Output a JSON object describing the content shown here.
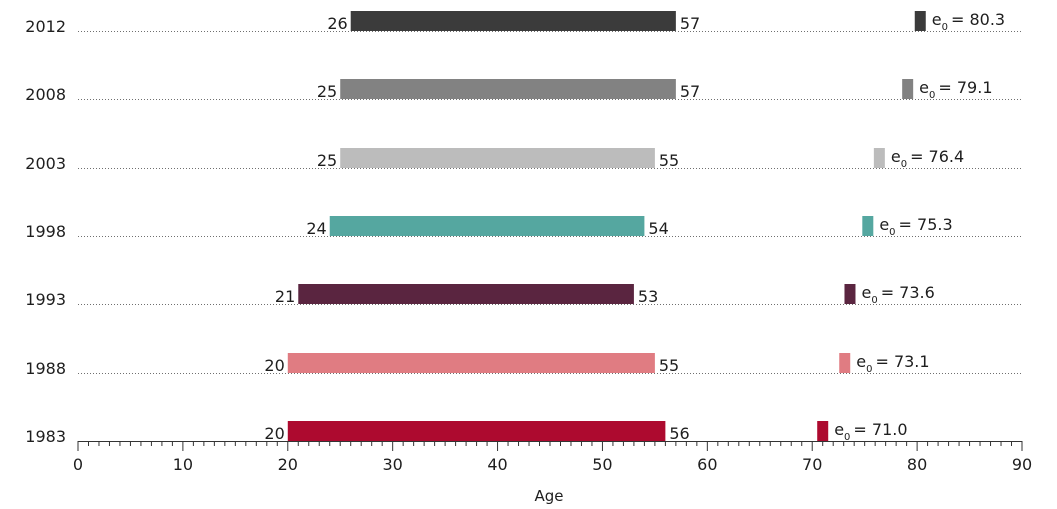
{
  "chart_data": {
    "type": "bar",
    "subtype": "floating-range",
    "xlabel": "Age",
    "ylabel": "",
    "xlim": [
      0,
      90
    ],
    "xticks": [
      0,
      10,
      20,
      30,
      40,
      50,
      60,
      70,
      80,
      90
    ],
    "minor_tick_step": 1,
    "grid": "dotted-row-guides",
    "rows": [
      {
        "year": "2012",
        "start": 26,
        "end": 57,
        "start_label": "26",
        "end_label": "57",
        "e0": 80.3,
        "e0_text": "= 80.3",
        "color": "#3b3b3b"
      },
      {
        "year": "2008",
        "start": 25,
        "end": 57,
        "start_label": "25",
        "end_label": "57",
        "e0": 79.1,
        "e0_text": "= 79.1",
        "color": "#828282"
      },
      {
        "year": "2003",
        "start": 25,
        "end": 55,
        "start_label": "25",
        "end_label": "55",
        "e0": 76.4,
        "e0_text": "= 76.4",
        "color": "#bcbcbc"
      },
      {
        "year": "1998",
        "start": 24,
        "end": 54,
        "start_label": "24",
        "end_label": "54",
        "e0": 75.3,
        "e0_text": "= 75.3",
        "color": "#55a7a0"
      },
      {
        "year": "1993",
        "start": 21,
        "end": 53,
        "start_label": "21",
        "end_label": "53",
        "e0": 73.6,
        "e0_text": "= 73.6",
        "color": "#5a2540"
      },
      {
        "year": "1988",
        "start": 20,
        "end": 55,
        "start_label": "20",
        "end_label": "55",
        "e0": 73.1,
        "e0_text": "= 73.1",
        "color": "#e07c82"
      },
      {
        "year": "1983",
        "start": 20,
        "end": 56,
        "start_label": "20",
        "end_label": "56",
        "e0": 71.0,
        "e0_text": "= 71.0",
        "color": "#ad0a2f"
      }
    ],
    "e0_prefix": "e",
    "e0_subscript": "0"
  }
}
